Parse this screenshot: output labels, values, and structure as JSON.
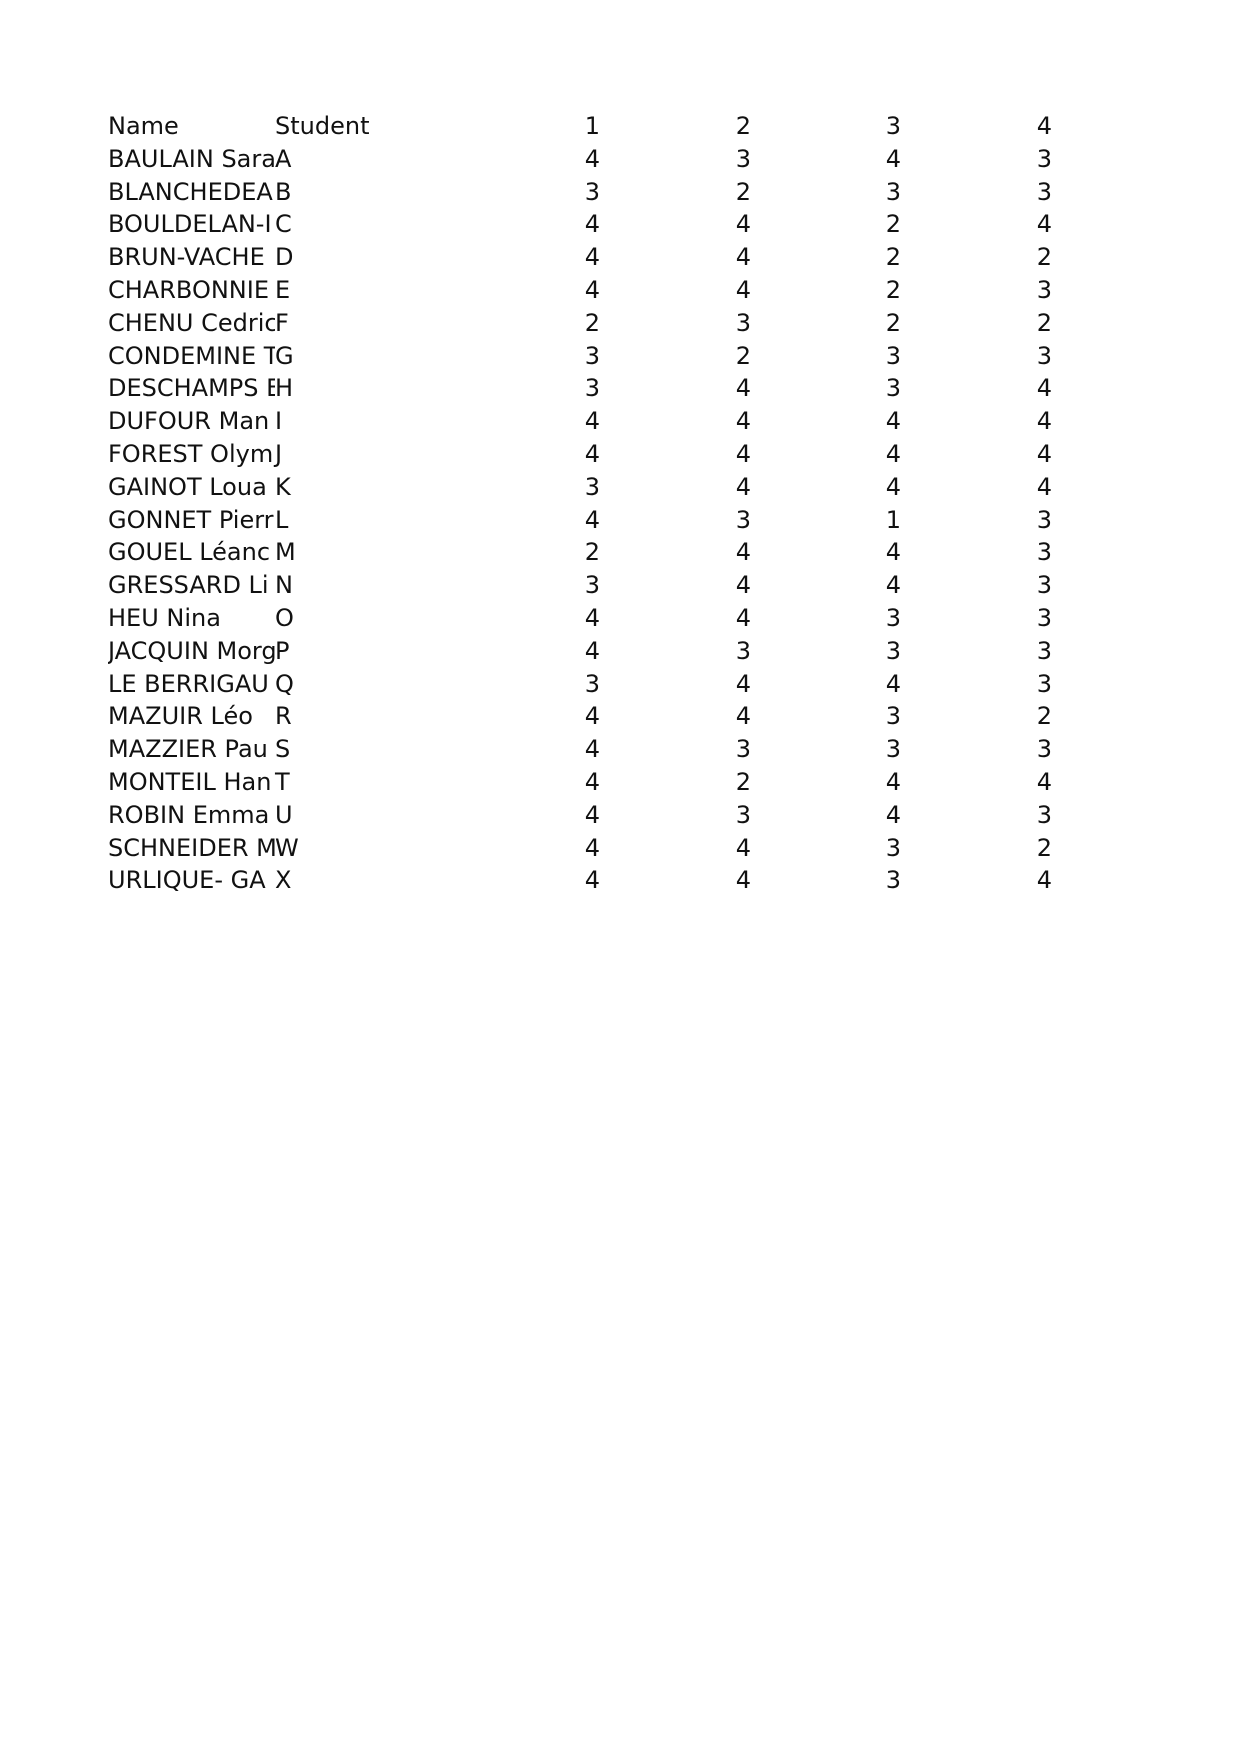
{
  "header": {
    "name": "Name",
    "student": "Student",
    "cols": [
      "1",
      "2",
      "3",
      "4"
    ]
  },
  "rows": [
    {
      "name": "BAULAIN Sara",
      "student": "A",
      "scores": [
        "4",
        "3",
        "4",
        "3"
      ]
    },
    {
      "name": "BLANCHEDEA",
      "student": "B",
      "scores": [
        "3",
        "2",
        "3",
        "3"
      ]
    },
    {
      "name": "BOULDELAN-I",
      "student": "C",
      "scores": [
        "4",
        "4",
        "2",
        "4"
      ]
    },
    {
      "name": "BRUN-VACHE",
      "student": "D",
      "scores": [
        "4",
        "4",
        "2",
        "2"
      ]
    },
    {
      "name": "CHARBONNIE",
      "student": "E",
      "scores": [
        "4",
        "4",
        "2",
        "3"
      ]
    },
    {
      "name": "CHENU Cedric",
      "student": "F",
      "scores": [
        "2",
        "3",
        "2",
        "2"
      ]
    },
    {
      "name": "CONDEMINE T",
      "student": "G",
      "scores": [
        "3",
        "2",
        "3",
        "3"
      ]
    },
    {
      "name": "DESCHAMPS E",
      "student": "H",
      "scores": [
        "3",
        "4",
        "3",
        "4"
      ]
    },
    {
      "name": "DUFOUR Man",
      "student": "I",
      "scores": [
        "4",
        "4",
        "4",
        "4"
      ]
    },
    {
      "name": "FOREST Olym",
      "student": "J",
      "scores": [
        "4",
        "4",
        "4",
        "4"
      ]
    },
    {
      "name": "GAINOT Loua",
      "student": "K",
      "scores": [
        "3",
        "4",
        "4",
        "4"
      ]
    },
    {
      "name": "GONNET Pierr",
      "student": "L",
      "scores": [
        "4",
        "3",
        "1",
        "3"
      ]
    },
    {
      "name": "GOUEL Léanc",
      "student": "M",
      "scores": [
        "2",
        "4",
        "4",
        "3"
      ]
    },
    {
      "name": "GRESSARD Li",
      "student": "N",
      "scores": [
        "3",
        "4",
        "4",
        "3"
      ]
    },
    {
      "name": "HEU Nina",
      "student": "O",
      "scores": [
        "4",
        "4",
        "3",
        "3"
      ]
    },
    {
      "name": "JACQUIN Morg",
      "student": "P",
      "scores": [
        "4",
        "3",
        "3",
        "3"
      ]
    },
    {
      "name": "LE BERRIGAU",
      "student": "Q",
      "scores": [
        "3",
        "4",
        "4",
        "3"
      ]
    },
    {
      "name": "MAZUIR Léo",
      "student": "R",
      "scores": [
        "4",
        "4",
        "3",
        "2"
      ]
    },
    {
      "name": "MAZZIER Pau",
      "student": "S",
      "scores": [
        "4",
        "3",
        "3",
        "3"
      ]
    },
    {
      "name": "MONTEIL Han",
      "student": "T",
      "scores": [
        "4",
        "2",
        "4",
        "4"
      ]
    },
    {
      "name": "ROBIN Emma",
      "student": "U",
      "scores": [
        "4",
        "3",
        "4",
        "3"
      ]
    },
    {
      "name": "SCHNEIDER M",
      "student": "W",
      "scores": [
        "4",
        "4",
        "3",
        "2"
      ]
    },
    {
      "name": "URLIQUE- GA",
      "student": "X",
      "scores": [
        "4",
        "4",
        "3",
        "4"
      ]
    }
  ]
}
